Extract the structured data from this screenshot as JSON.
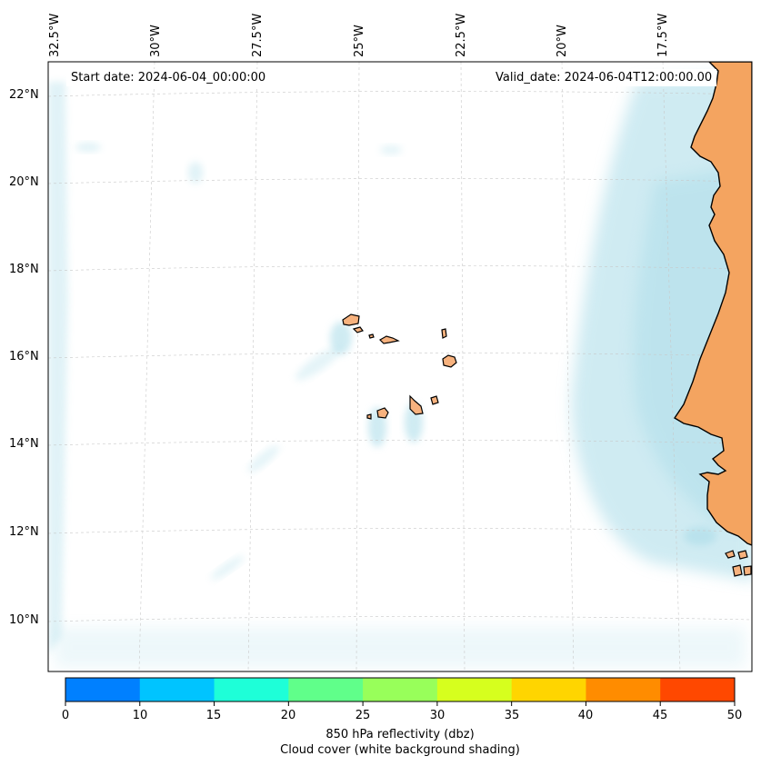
{
  "map": {
    "start_date": "Start date: 2024-06-04_00:00:00",
    "valid_date": "Valid_date: 2024-06-04T12:00:00.00",
    "lon_labels": [
      "32.5°W",
      "30°W",
      "27.5°W",
      "25°W",
      "22.5°W",
      "20°W",
      "17.5°W"
    ],
    "lat_labels": [
      "22°N",
      "20°N",
      "18°N",
      "16°N",
      "14°N",
      "12°N",
      "10°N"
    ],
    "colors": {
      "land": "#f4a460",
      "island": "#f7b27e",
      "cloud": "#a8dbe8",
      "gridline": "#c8c8c8",
      "coastline": "#000000"
    }
  },
  "colorbar": {
    "ticks": [
      "0",
      "10",
      "15",
      "20",
      "25",
      "30",
      "35",
      "40",
      "45",
      "50"
    ],
    "colors": [
      "#0080ff",
      "#00c4ff",
      "#1effd8",
      "#60ff8a",
      "#98ff5a",
      "#d6ff1e",
      "#ffd500",
      "#ff8c00",
      "#ff4800"
    ],
    "label_line1": "850 hPa reflectivity (dbz)",
    "label_line2": "Cloud cover (white background shading)"
  }
}
